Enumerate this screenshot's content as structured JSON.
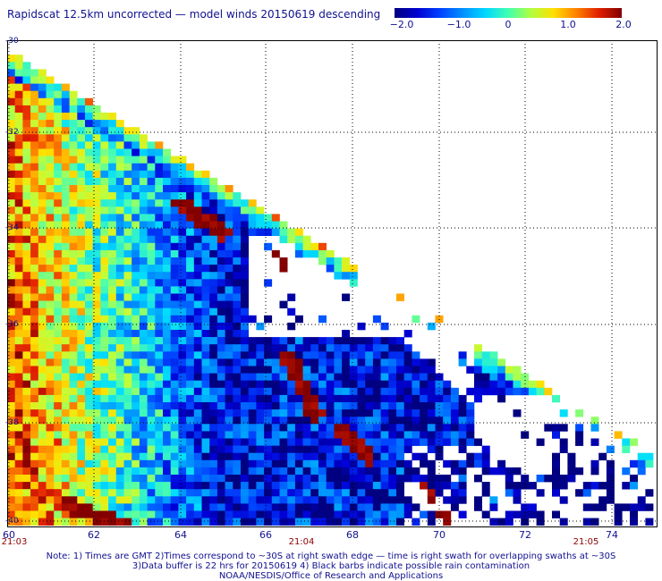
{
  "title": "Rapidscat 12.5km uncorrected — model winds 20150619 descending",
  "colorbar": {
    "ticks": [
      "−2.0",
      "−1.0",
      "0",
      "1.0",
      "2.0"
    ]
  },
  "map": {
    "lat_labels": [
      "-30",
      "-32",
      "-34",
      "-36",
      "-38",
      "-40"
    ],
    "lon_labels": [
      "60",
      "62",
      "64",
      "66",
      "68",
      "70",
      "72",
      "74"
    ],
    "time_labels": [
      "21:03",
      "21:04",
      "21:05"
    ]
  },
  "notes": [
    "Note: 1) Times are GMT 2)Times correspond to ~30S at right swath edge — time is right swath for overlapping swaths at ~30S",
    "3)Data buffer is 22 hrs for 20150619 4) Black barbs indicate possible rain contamination",
    "NOAA/NESDIS/Office of Research and Applications"
  ]
}
